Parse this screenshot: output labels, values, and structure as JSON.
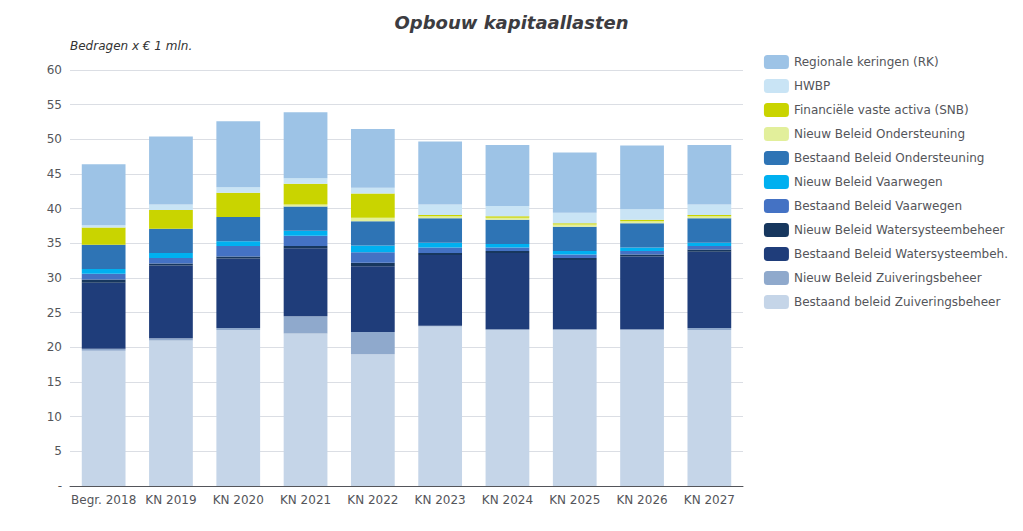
{
  "chart_data": {
    "type": "bar",
    "stacked": true,
    "title": "Opbouw kapitaallasten",
    "ylabel": "Bedragen x € 1 mln.",
    "categories": [
      "Begr. 2018",
      "KN 2019",
      "KN 2020",
      "KN 2021",
      "KN 2022",
      "KN 2023",
      "KN 2024",
      "KN 2025",
      "KN 2026",
      "KN 2027"
    ],
    "series": [
      {
        "name": "Bestaand beleid Zuiveringsbeheer",
        "color": "#c5d5e8",
        "values": [
          19.5,
          21.0,
          22.5,
          22.0,
          19.0,
          23.0,
          22.5,
          22.5,
          22.5,
          22.5
        ]
      },
      {
        "name": "Nieuw Beleid Zuiveringsbeheer",
        "color": "#8fa9cc",
        "values": [
          0.3,
          0.3,
          0.3,
          2.5,
          3.2,
          0.1,
          0.1,
          0.1,
          0.1,
          0.3
        ]
      },
      {
        "name": "Bestaand Beleid Watersysteembeh.",
        "color": "#1f3d7a",
        "values": [
          9.5,
          10.5,
          10.0,
          9.8,
          9.5,
          10.2,
          11.0,
          10.0,
          10.5,
          11.0
        ]
      },
      {
        "name": "Nieuw Beleid Watersysteembeheer",
        "color": "#17375e",
        "values": [
          0.5,
          0.3,
          0.3,
          0.3,
          0.5,
          0.3,
          0.3,
          0.3,
          0.3,
          0.3
        ]
      },
      {
        "name": "Bestaand Beleid Vaarwegen",
        "color": "#4472c4",
        "values": [
          0.8,
          0.8,
          1.5,
          1.5,
          1.5,
          0.8,
          0.5,
          0.5,
          0.5,
          0.5
        ]
      },
      {
        "name": "Nieuw Beleid Vaarwegen",
        "color": "#00b0f0",
        "values": [
          0.7,
          0.7,
          0.7,
          0.7,
          1.0,
          0.7,
          0.5,
          0.5,
          0.5,
          0.5
        ]
      },
      {
        "name": "Bestaand Beleid Ondersteuning",
        "color": "#2e74b5",
        "values": [
          3.5,
          3.5,
          3.5,
          3.5,
          3.5,
          3.5,
          3.5,
          3.5,
          3.5,
          3.5
        ]
      },
      {
        "name": "Nieuw Beleid Ondersteuning",
        "color": "#e2ef9b",
        "values": [
          0.0,
          0.0,
          0.0,
          0.3,
          0.5,
          0.3,
          0.3,
          0.3,
          0.3,
          0.3
        ]
      },
      {
        "name": "Financiële vaste activa (SNB)",
        "color": "#c9d400",
        "values": [
          2.5,
          2.7,
          3.5,
          3.0,
          3.5,
          0.2,
          0.2,
          0.2,
          0.2,
          0.2
        ]
      },
      {
        "name": "HWBP",
        "color": "#c9e4f5",
        "values": [
          0.3,
          0.8,
          0.8,
          0.8,
          0.8,
          1.5,
          1.5,
          1.5,
          1.5,
          1.5
        ]
      },
      {
        "name": "Regionale keringen (RK)",
        "color": "#9dc3e6",
        "values": [
          8.8,
          9.8,
          9.5,
          9.5,
          8.5,
          9.1,
          8.8,
          8.7,
          9.2,
          8.6
        ]
      }
    ],
    "ylim": [
      0,
      60
    ],
    "yticks": [
      {
        "value": 0,
        "label": "-"
      },
      5,
      10,
      15,
      20,
      25,
      30,
      35,
      40,
      45,
      50,
      55,
      60
    ],
    "grid": true,
    "legend": "upper right"
  }
}
